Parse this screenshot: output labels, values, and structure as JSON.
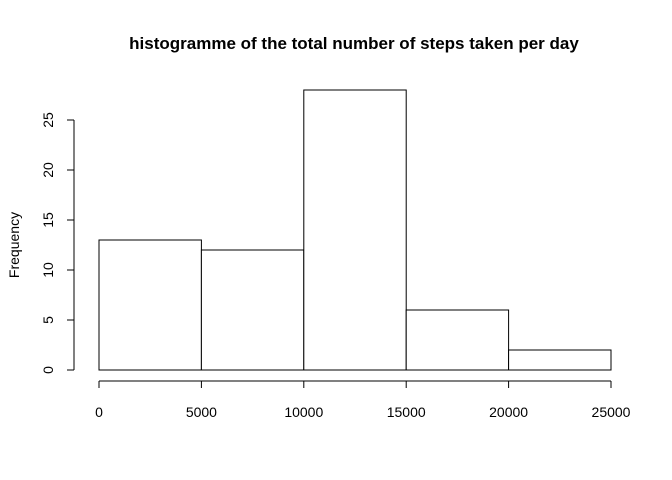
{
  "chart_data": {
    "type": "bar",
    "title": "histogramme of the total number of steps taken per day",
    "xlabel": "",
    "ylabel": "Frequency",
    "bins": [
      {
        "from": 0,
        "to": 5000,
        "count": 13
      },
      {
        "from": 5000,
        "to": 10000,
        "count": 12
      },
      {
        "from": 10000,
        "to": 15000,
        "count": 28
      },
      {
        "from": 15000,
        "to": 20000,
        "count": 6
      },
      {
        "from": 20000,
        "to": 25000,
        "count": 2
      }
    ],
    "xlim": [
      0,
      25000
    ],
    "ylim": [
      0,
      28
    ],
    "xticks": [
      0,
      5000,
      10000,
      15000,
      20000,
      25000
    ],
    "yticks": [
      0,
      5,
      10,
      15,
      20,
      25
    ],
    "grid": false,
    "bar_fill": "#ffffff",
    "bar_stroke": "#000000"
  }
}
